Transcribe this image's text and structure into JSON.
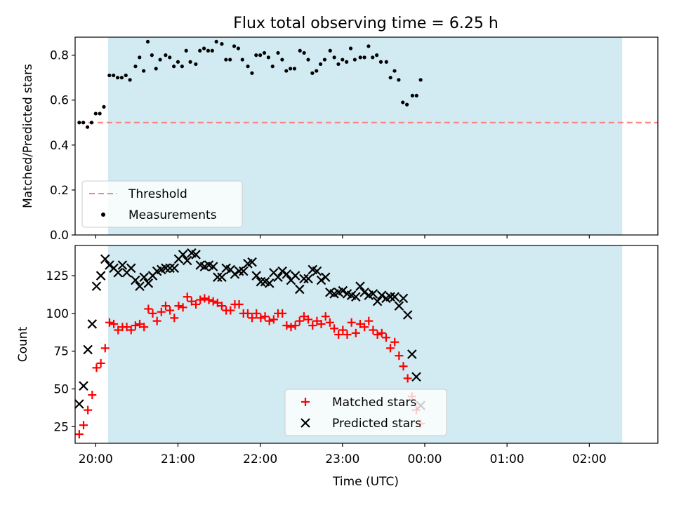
{
  "figure": {
    "title": "Flux total observing time = 6.25 h",
    "xlabel": "Time (UTC)"
  },
  "chart_data": [
    {
      "type": "scatter",
      "panel": "top",
      "ylabel": "Matched/Predicted stars",
      "xlim": [
        "19:45",
        "02:50"
      ],
      "ylim": [
        0,
        0.88
      ],
      "yticks": [
        0.0,
        0.2,
        0.4,
        0.6,
        0.8
      ],
      "yticklabels": [
        "0.0",
        "0.2",
        "0.4",
        "0.6",
        "0.8"
      ],
      "xticks": [
        "20:00",
        "21:00",
        "22:00",
        "23:00",
        "00:00",
        "01:00",
        "02:00"
      ],
      "shaded_span": [
        "20:09",
        "02:24"
      ],
      "grid": false,
      "legend_position": "lower-left",
      "threshold": {
        "name": "Threshold",
        "value": 0.5,
        "color": "#ff8080",
        "style": "dashed"
      },
      "series": [
        {
          "name": "Measurements",
          "color": "#000000",
          "marker": "dot",
          "points": [
            [
              "19:48",
              0.5
            ],
            [
              "19:51",
              0.5
            ],
            [
              "19:54",
              0.48
            ],
            [
              "19:57",
              0.5
            ],
            [
              "20:00",
              0.54
            ],
            [
              "20:03",
              0.54
            ],
            [
              "20:06",
              0.57
            ],
            [
              "20:10",
              0.71
            ],
            [
              "20:13",
              0.71
            ],
            [
              "20:16",
              0.7
            ],
            [
              "20:19",
              0.7
            ],
            [
              "20:22",
              0.71
            ],
            [
              "20:25",
              0.69
            ],
            [
              "20:29",
              0.75
            ],
            [
              "20:32",
              0.79
            ],
            [
              "20:35",
              0.73
            ],
            [
              "20:38",
              0.86
            ],
            [
              "20:41",
              0.8
            ],
            [
              "20:44",
              0.74
            ],
            [
              "20:47",
              0.78
            ],
            [
              "20:51",
              0.8
            ],
            [
              "20:54",
              0.79
            ],
            [
              "20:57",
              0.75
            ],
            [
              "21:00",
              0.77
            ],
            [
              "21:03",
              0.75
            ],
            [
              "21:06",
              0.82
            ],
            [
              "21:09",
              0.77
            ],
            [
              "21:13",
              0.76
            ],
            [
              "21:16",
              0.82
            ],
            [
              "21:19",
              0.83
            ],
            [
              "21:22",
              0.82
            ],
            [
              "21:25",
              0.82
            ],
            [
              "21:28",
              0.86
            ],
            [
              "21:32",
              0.85
            ],
            [
              "21:35",
              0.78
            ],
            [
              "21:38",
              0.78
            ],
            [
              "21:41",
              0.84
            ],
            [
              "21:44",
              0.83
            ],
            [
              "21:47",
              0.78
            ],
            [
              "21:51",
              0.75
            ],
            [
              "21:54",
              0.72
            ],
            [
              "21:57",
              0.8
            ],
            [
              "22:00",
              0.8
            ],
            [
              "22:03",
              0.81
            ],
            [
              "22:06",
              0.79
            ],
            [
              "22:09",
              0.75
            ],
            [
              "22:13",
              0.81
            ],
            [
              "22:16",
              0.78
            ],
            [
              "22:19",
              0.73
            ],
            [
              "22:22",
              0.74
            ],
            [
              "22:25",
              0.74
            ],
            [
              "22:29",
              0.82
            ],
            [
              "22:32",
              0.81
            ],
            [
              "22:35",
              0.78
            ],
            [
              "22:38",
              0.72
            ],
            [
              "22:41",
              0.73
            ],
            [
              "22:44",
              0.76
            ],
            [
              "22:47",
              0.78
            ],
            [
              "22:51",
              0.82
            ],
            [
              "22:54",
              0.79
            ],
            [
              "22:57",
              0.76
            ],
            [
              "23:00",
              0.78
            ],
            [
              "23:03",
              0.77
            ],
            [
              "23:06",
              0.83
            ],
            [
              "23:09",
              0.78
            ],
            [
              "23:13",
              0.79
            ],
            [
              "23:16",
              0.79
            ],
            [
              "23:19",
              0.84
            ],
            [
              "23:22",
              0.79
            ],
            [
              "23:25",
              0.8
            ],
            [
              "23:28",
              0.77
            ],
            [
              "23:32",
              0.77
            ],
            [
              "23:35",
              0.7
            ],
            [
              "23:38",
              0.73
            ],
            [
              "23:41",
              0.69
            ],
            [
              "23:44",
              0.59
            ],
            [
              "23:47",
              0.58
            ],
            [
              "23:51",
              0.62
            ],
            [
              "23:54",
              0.62
            ],
            [
              "23:57",
              0.69
            ]
          ]
        }
      ]
    },
    {
      "type": "scatter",
      "panel": "bottom",
      "ylabel": "Count",
      "xlabel": "Time (UTC)",
      "xlim": [
        "19:45",
        "02:50"
      ],
      "ylim": [
        14,
        145
      ],
      "yticks": [
        25,
        50,
        75,
        100,
        125
      ],
      "yticklabels": [
        "25",
        "50",
        "75",
        "100",
        "125"
      ],
      "xticks": [
        "20:00",
        "21:00",
        "22:00",
        "23:00",
        "00:00",
        "01:00",
        "02:00"
      ],
      "xticklabels": [
        "20:00",
        "21:00",
        "22:00",
        "23:00",
        "00:00",
        "01:00",
        "02:00"
      ],
      "shaded_span": [
        "20:09",
        "02:24"
      ],
      "grid": false,
      "legend_position": "lower-center",
      "series": [
        {
          "name": "Matched stars",
          "color": "#ff0000",
          "marker": "plus",
          "values": [
            20,
            26,
            36,
            46,
            64,
            67,
            77,
            94,
            93,
            89,
            91,
            91,
            89,
            92,
            93,
            91,
            103,
            100,
            95,
            101,
            105,
            102,
            97,
            105,
            104,
            111,
            108,
            106,
            109,
            110,
            109,
            108,
            107,
            105,
            102,
            102,
            106,
            106,
            100,
            100,
            97,
            100,
            97,
            98,
            95,
            96,
            100,
            100,
            92,
            91,
            92,
            95,
            98,
            96,
            92,
            95,
            93,
            98,
            94,
            90,
            86,
            89,
            86,
            94,
            87,
            93,
            91,
            95,
            89,
            86,
            87,
            84,
            77,
            81,
            72,
            65,
            57,
            45,
            36,
            27
          ]
        },
        {
          "name": "Predicted stars",
          "color": "#000000",
          "marker": "x",
          "values": [
            40,
            52,
            76,
            93,
            118,
            125,
            136,
            132,
            130,
            127,
            132,
            127,
            130,
            122,
            118,
            124,
            120,
            125,
            128,
            129,
            130,
            130,
            130,
            136,
            139,
            135,
            140,
            139,
            132,
            131,
            132,
            131,
            124,
            124,
            130,
            129,
            126,
            128,
            128,
            133,
            134,
            125,
            121,
            121,
            120,
            127,
            124,
            128,
            126,
            122,
            125,
            116,
            123,
            123,
            129,
            128,
            122,
            124,
            114,
            113,
            114,
            115,
            113,
            112,
            111,
            118,
            114,
            112,
            113,
            108,
            112,
            110,
            111,
            111,
            105,
            110,
            99,
            73,
            58,
            39
          ]
        }
      ]
    }
  ]
}
